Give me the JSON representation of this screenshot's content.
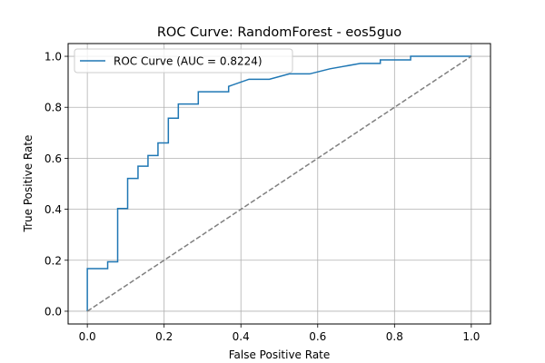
{
  "chart_data": {
    "type": "line",
    "title": "ROC Curve: RandomForest - eos5guo",
    "xlabel": "False Positive Rate",
    "ylabel": "True Positive Rate",
    "xlim": [
      -0.05,
      1.05
    ],
    "ylim": [
      -0.05,
      1.05
    ],
    "xticks": [
      0.0,
      0.2,
      0.4,
      0.6,
      0.8,
      1.0
    ],
    "yticks": [
      0.0,
      0.2,
      0.4,
      0.6,
      0.8,
      1.0
    ],
    "xtick_labels": [
      "0.0",
      "0.2",
      "0.4",
      "0.6",
      "0.8",
      "1.0"
    ],
    "ytick_labels": [
      "0.0",
      "0.2",
      "0.4",
      "0.6",
      "0.8",
      "1.0"
    ],
    "grid": true,
    "legend_position": "top-left",
    "series": [
      {
        "name": "ROC Curve (AUC = 0.8224)",
        "color": "#1f77b4",
        "style": "solid",
        "x": [
          0.0,
          0.0,
          0.053,
          0.053,
          0.079,
          0.079,
          0.105,
          0.105,
          0.132,
          0.132,
          0.158,
          0.158,
          0.184,
          0.184,
          0.211,
          0.211,
          0.237,
          0.237,
          0.289,
          0.289,
          0.368,
          0.368,
          0.421,
          0.474,
          0.526,
          0.579,
          0.632,
          0.711,
          0.763,
          0.763,
          0.842,
          0.842,
          1.0
        ],
        "y": [
          0.0,
          0.167,
          0.167,
          0.194,
          0.194,
          0.403,
          0.403,
          0.521,
          0.521,
          0.569,
          0.569,
          0.611,
          0.611,
          0.66,
          0.66,
          0.757,
          0.757,
          0.813,
          0.813,
          0.861,
          0.861,
          0.882,
          0.91,
          0.91,
          0.931,
          0.931,
          0.951,
          0.972,
          0.972,
          0.986,
          0.986,
          1.0,
          1.0
        ]
      },
      {
        "name": "",
        "color": "#7f7f7f",
        "style": "dashed",
        "x": [
          0.0,
          1.0
        ],
        "y": [
          0.0,
          1.0
        ]
      }
    ]
  }
}
